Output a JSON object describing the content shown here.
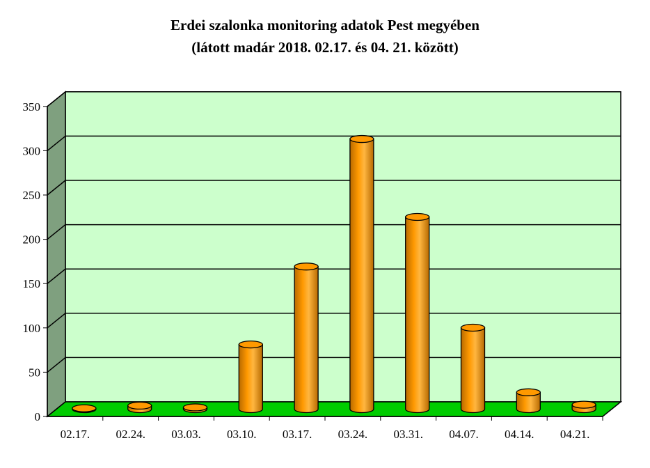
{
  "chart_data": {
    "type": "bar",
    "title": "Erdei szalonka monitoring adatok Pest megyében",
    "subtitle": "(látott madár 2018. 02.17. és 04. 21. között)",
    "categories": [
      "02.17.",
      "02.24.",
      "03.03.",
      "03.10.",
      "03.17.",
      "03.24.",
      "03.31.",
      "04.07.",
      "04.14.",
      "04.21."
    ],
    "values": [
      1,
      4,
      2,
      73,
      161,
      305,
      217,
      92,
      19,
      5
    ],
    "ylim": [
      0,
      350
    ],
    "yticks": [
      0,
      50,
      100,
      150,
      200,
      250,
      300,
      350
    ],
    "grid": true,
    "legend": "none",
    "colors": {
      "bar": "#ff9900",
      "bar_dark": "#b86a00",
      "plot_back": "#ccffcc",
      "side_wall": "#7fa07f",
      "floor": "#00cc00"
    }
  }
}
